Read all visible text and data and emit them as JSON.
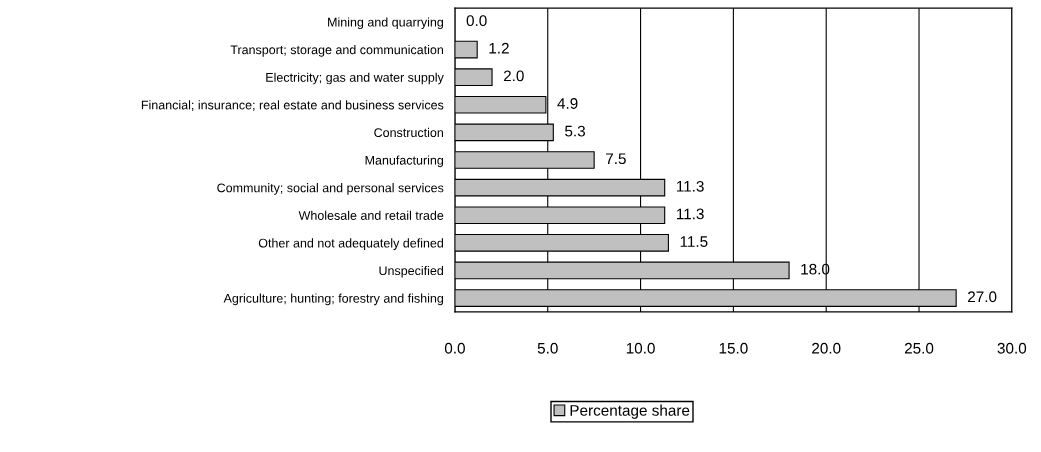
{
  "chart_data": {
    "type": "bar",
    "orientation": "horizontal",
    "categories": [
      "Mining and quarrying",
      "Transport; storage and communication",
      "Electricity; gas and water supply",
      "Financial; insurance; real estate and business services",
      "Construction",
      "Manufacturing",
      "Community; social and personal services",
      "Wholesale and retail trade",
      "Other and not adequately defined",
      "Unspecified",
      "Agriculture; hunting; forestry and fishing"
    ],
    "series": [
      {
        "name": "Percentage share",
        "color": "#c0c0c0",
        "values": [
          0.0,
          1.2,
          2.0,
          4.9,
          5.3,
          7.5,
          11.3,
          11.3,
          11.5,
          18.0,
          27.0
        ],
        "value_labels": [
          "0.0",
          "1.2",
          "2.0",
          "4.9",
          "5.3",
          "7.5",
          "11.3",
          "11.3",
          "11.5",
          "18.0",
          "27.0"
        ]
      }
    ],
    "xlim": [
      0,
      30
    ],
    "xticks": [
      {
        "value": 0,
        "label": "0.0"
      },
      {
        "value": 5,
        "label": "5.0"
      },
      {
        "value": 10,
        "label": "10.0"
      },
      {
        "value": 15,
        "label": "15.0"
      },
      {
        "value": 20,
        "label": "20.0"
      },
      {
        "value": 25,
        "label": "25.0"
      },
      {
        "value": 30,
        "label": "30.0"
      }
    ],
    "grid": "x",
    "legend": "bottom"
  }
}
